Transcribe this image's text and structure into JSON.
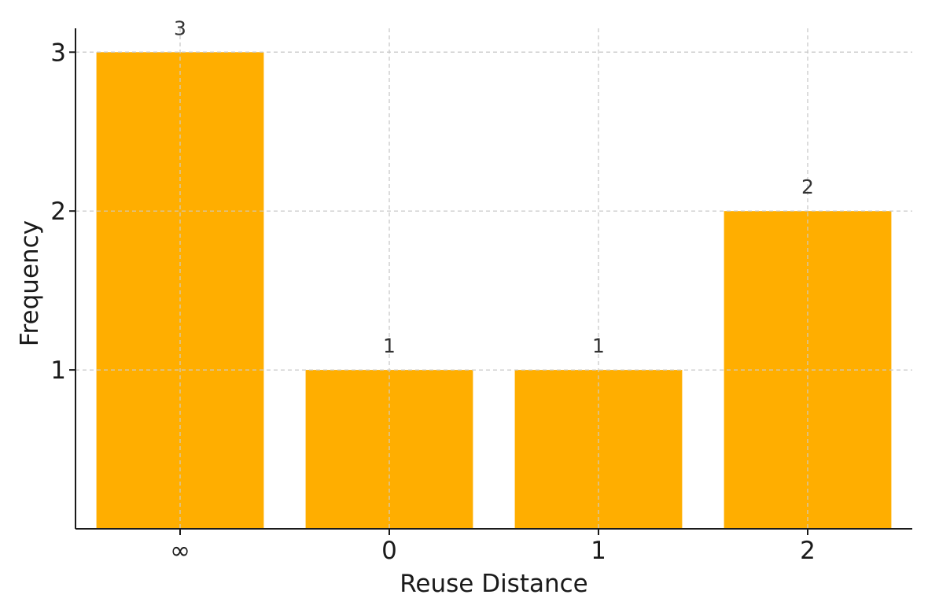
{
  "chart_data": {
    "type": "bar",
    "title": "",
    "xlabel": "Reuse Distance",
    "ylabel": "Frequency",
    "categories": [
      "∞",
      "0",
      "1",
      "2"
    ],
    "values": [
      3,
      1,
      1,
      2
    ],
    "data_labels": [
      "3",
      "1",
      "1",
      "2"
    ],
    "y_ticks": [
      1,
      2,
      3
    ],
    "y_tick_labels": [
      "1",
      "2",
      "3"
    ],
    "ylim": [
      0,
      3.15
    ],
    "grid": true,
    "bar_color": "#FFAE00",
    "grid_color": "#cccccc"
  }
}
